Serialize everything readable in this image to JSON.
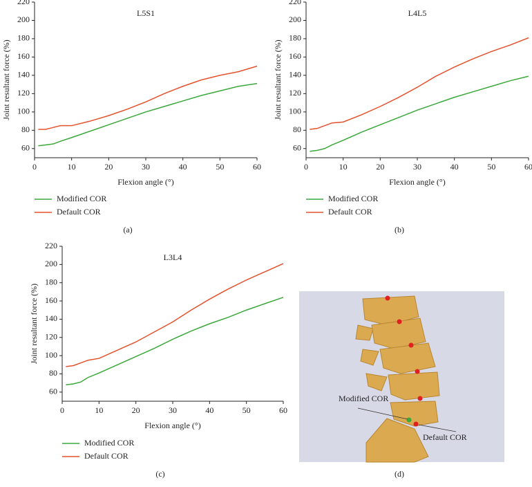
{
  "chart_data": [
    {
      "type": "line",
      "title": "L5S1",
      "xlabel": "Flexion angle (°)",
      "ylabel": "Joint resultant force (%)",
      "caption": "(a)",
      "x": [
        1,
        3,
        5,
        7,
        10,
        15,
        20,
        25,
        30,
        35,
        40,
        45,
        50,
        55,
        60
      ],
      "series": [
        {
          "name": "Modified COR",
          "color": "#3aa83a",
          "values": [
            63,
            64,
            65,
            68,
            72,
            79,
            86,
            93,
            100,
            106,
            112,
            118,
            123,
            128,
            131
          ]
        },
        {
          "name": "Default COR",
          "color": "#e4512c",
          "values": [
            81,
            81,
            83,
            85,
            85,
            90,
            96,
            103,
            111,
            120,
            128,
            135,
            140,
            144,
            150
          ]
        }
      ],
      "xlim": [
        0,
        60
      ],
      "xticks": [
        0,
        10,
        20,
        30,
        40,
        50,
        60
      ],
      "ylim": [
        50,
        220
      ],
      "yticks": [
        60,
        80,
        100,
        120,
        140,
        160,
        180,
        200,
        220
      ]
    },
    {
      "type": "line",
      "title": "L4L5",
      "xlabel": "Flexion angle (°)",
      "ylabel": "Joint resultant force (%)",
      "caption": "(b)",
      "x": [
        1,
        3,
        5,
        7,
        10,
        15,
        20,
        25,
        30,
        35,
        40,
        45,
        50,
        55,
        60
      ],
      "series": [
        {
          "name": "Modified COR",
          "color": "#3aa83a",
          "values": [
            57,
            58,
            60,
            64,
            69,
            78,
            86,
            94,
            102,
            109,
            116,
            122,
            128,
            134,
            139
          ]
        },
        {
          "name": "Default COR",
          "color": "#e4512c",
          "values": [
            81,
            82,
            85,
            88,
            89,
            97,
            106,
            116,
            127,
            139,
            149,
            158,
            166,
            173,
            181
          ]
        }
      ],
      "xlim": [
        0,
        60
      ],
      "xticks": [
        0,
        10,
        20,
        30,
        40,
        50,
        60
      ],
      "ylim": [
        50,
        220
      ],
      "yticks": [
        60,
        80,
        100,
        120,
        140,
        160,
        180,
        200,
        220
      ]
    },
    {
      "type": "line",
      "title": "L3L4",
      "xlabel": "Flexion angle (°)",
      "ylabel": "Joint resultant force (%)",
      "caption": "(c)",
      "x": [
        1,
        3,
        5,
        7,
        10,
        15,
        20,
        25,
        30,
        35,
        40,
        45,
        50,
        55,
        60
      ],
      "series": [
        {
          "name": "Modified COR",
          "color": "#3aa83a",
          "values": [
            68,
            69,
            71,
            76,
            81,
            90,
            99,
            108,
            118,
            127,
            135,
            142,
            150,
            157,
            164
          ]
        },
        {
          "name": "Default COR",
          "color": "#e4512c",
          "values": [
            88,
            89,
            92,
            95,
            97,
            106,
            115,
            126,
            137,
            150,
            162,
            173,
            183,
            192,
            201
          ]
        }
      ],
      "xlim": [
        0,
        60
      ],
      "xticks": [
        0,
        10,
        20,
        30,
        40,
        50,
        60
      ],
      "ylim": [
        50,
        220
      ],
      "yticks": [
        60,
        80,
        100,
        120,
        140,
        160,
        180,
        200,
        220
      ]
    }
  ],
  "image_panel": {
    "labels": [
      "Modified COR",
      "Default COR"
    ],
    "caption": "(d)"
  }
}
